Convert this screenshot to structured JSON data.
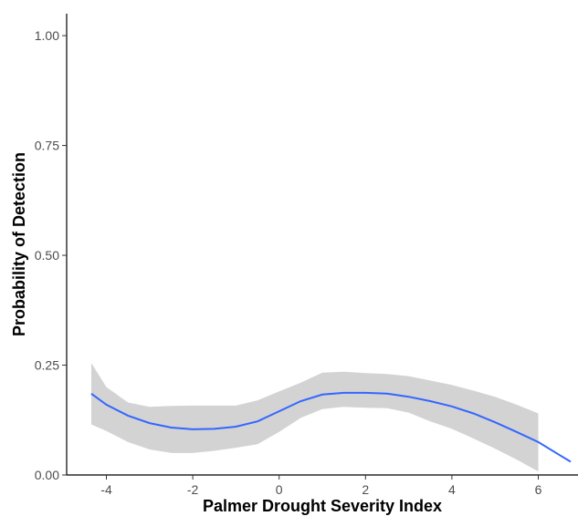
{
  "chart_data": {
    "type": "line",
    "title": "",
    "xlabel": "Palmer Drought Severity Index",
    "ylabel": "Probability of Detection",
    "xlim": [
      -4.92,
      6.92
    ],
    "ylim": [
      0,
      1.05
    ],
    "x_ticks": [
      -4,
      -2,
      0,
      2,
      4,
      6
    ],
    "y_ticks": [
      "0.00",
      "0.25",
      "0.50",
      "0.75",
      "1.00"
    ],
    "grid": false,
    "legend": "none",
    "series": [
      {
        "x": [
          -4.35,
          -4.0,
          -3.5,
          -3.0,
          -2.5,
          -2.0,
          -1.5,
          -1.0,
          -0.5,
          0.0,
          0.5,
          1.0,
          1.5,
          2.0,
          2.5,
          3.0,
          3.5,
          4.0,
          4.5,
          5.0,
          5.5,
          6.0,
          6.5,
          6.75
        ],
        "y": [
          0.185,
          0.16,
          0.135,
          0.118,
          0.108,
          0.104,
          0.105,
          0.11,
          0.122,
          0.145,
          0.168,
          0.183,
          0.187,
          0.187,
          0.185,
          0.178,
          0.168,
          0.156,
          0.14,
          0.12,
          0.098,
          0.075,
          0.045,
          0.03
        ],
        "ci_lower": [
          0.115,
          0.1,
          0.075,
          0.058,
          0.05,
          0.05,
          0.055,
          0.062,
          0.07,
          0.098,
          0.13,
          0.15,
          0.155,
          0.153,
          0.152,
          0.142,
          0.122,
          0.105,
          0.083,
          0.06,
          0.035,
          0.008,
          null,
          null
        ],
        "ci_upper": [
          0.255,
          0.2,
          0.165,
          0.155,
          0.157,
          0.158,
          0.158,
          0.158,
          0.17,
          0.19,
          0.21,
          0.233,
          0.235,
          0.232,
          0.23,
          0.225,
          0.215,
          0.205,
          0.192,
          0.178,
          0.16,
          0.14,
          null,
          null
        ]
      }
    ],
    "colors": {
      "line": "#3366ff",
      "ribbon": "#d3d3d3",
      "axis": "#000000",
      "tick_text": "#4d4d4d"
    }
  }
}
